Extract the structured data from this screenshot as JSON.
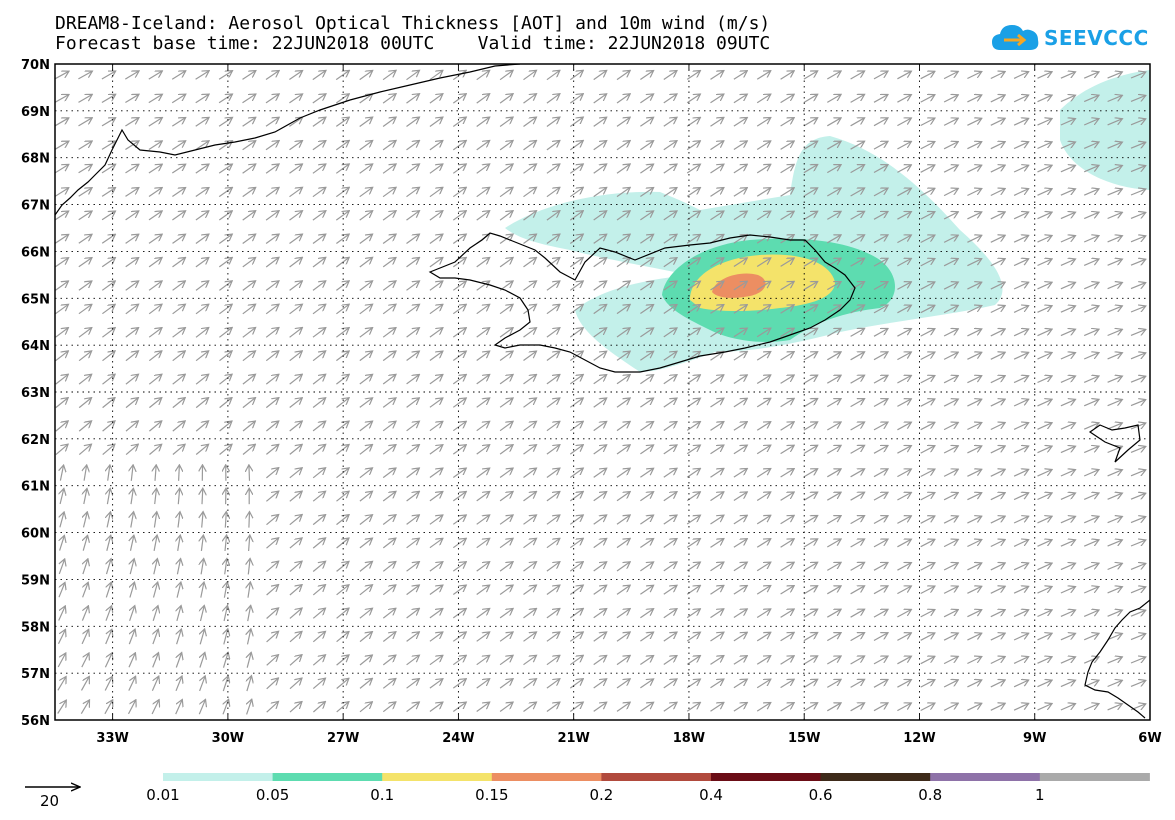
{
  "title": {
    "line1": "DREAM8-Iceland: Aerosol Optical Thickness [AOT] and 10m wind (m/s)",
    "line2": "Forecast base time: 22JUN2018 00UTC    Valid time: 22JUN2018 09UTC"
  },
  "logo": {
    "text": "SEEVCCC",
    "icon": "cloud-logo-icon"
  },
  "map": {
    "lat_labels": [
      "70N",
      "69N",
      "68N",
      "67N",
      "66N",
      "65N",
      "64N",
      "63N",
      "62N",
      "61N",
      "60N",
      "59N",
      "58N",
      "57N",
      "56N"
    ],
    "lon_labels": [
      "33W",
      "30W",
      "27W",
      "24W",
      "21W",
      "18W",
      "15W",
      "12W",
      "9W",
      "6W"
    ],
    "lat_range": [
      56,
      70
    ],
    "lon_range": [
      -34.5,
      -6
    ],
    "grid": "dotted"
  },
  "wind_reference": {
    "label": "20"
  },
  "colorbar": {
    "labels": [
      "0.01",
      "0.05",
      "0.1",
      "0.15",
      "0.2",
      "0.4",
      "0.6",
      "0.8",
      "1"
    ],
    "colors": [
      "#c3f0ea",
      "#5ddcb0",
      "#f4e36a",
      "#ec8e62",
      "#b14a3d",
      "#6b0d16",
      "#3e2a1a",
      "#8e72a8",
      "#aaaaaa"
    ]
  },
  "contours": {
    "levels": [
      "0.01",
      "0.05",
      "0.1",
      "0.15"
    ],
    "colors": [
      "#c3f0ea",
      "#5ddcb0",
      "#f4e36a",
      "#ec8e62"
    ]
  }
}
